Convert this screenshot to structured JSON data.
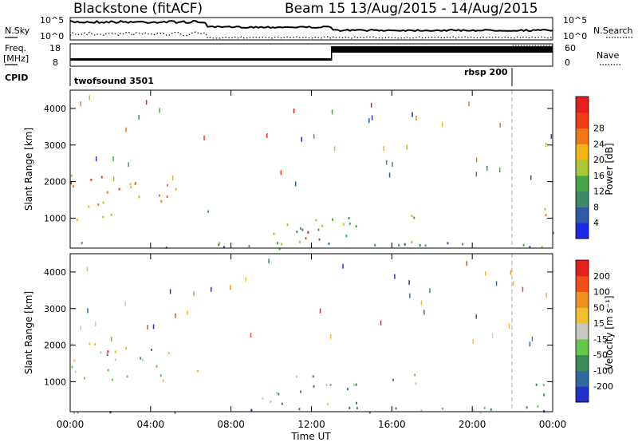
{
  "header": {
    "station": "Blackstone (fitACF)",
    "beam_dates": "Beam 15  13/Aug/2015 - 14/Aug/2015"
  },
  "summary": {
    "nsky_label": "N.Sky",
    "nsky_ticks": [
      "10^5",
      "10^0"
    ],
    "nsearch_label": "N.Search",
    "nsearch_ticks": [
      "10^5",
      "10^0"
    ],
    "freq_label_1": "Freq.",
    "freq_label_2": "[MHz]",
    "freq_ticks": [
      "18",
      "8"
    ],
    "nave_label": "Nave",
    "nave_ticks": [
      "60",
      "0"
    ],
    "cpid_label": "CPID",
    "cpid_segments": [
      {
        "name": "twofsound 3501",
        "start_h": 0,
        "end_h": 22
      },
      {
        "name": "rbsp 200",
        "start_h": 22,
        "end_h": 24
      }
    ],
    "freq_steps": [
      {
        "start_h": 0,
        "end_h": 13,
        "value": 8
      },
      {
        "start_h": 13,
        "end_h": 24,
        "value": 18
      }
    ],
    "nave_steps": [
      {
        "start_h": 0,
        "end_h": 13,
        "value": 0
      },
      {
        "start_h": 13,
        "end_h": 22,
        "value": 50
      },
      {
        "start_h": 22,
        "end_h": 24,
        "value": 60
      }
    ]
  },
  "chart_data": [
    {
      "type": "heatmap",
      "name": "power",
      "ylabel": "Slant Range [km]",
      "xlabel": "Time UT",
      "xlim": [
        0,
        24
      ],
      "ylim": [
        180,
        4500
      ],
      "xticks": [
        "00:00",
        "04:00",
        "08:00",
        "12:00",
        "16:00",
        "20:00",
        "00:00"
      ],
      "yticks": [
        1000,
        2000,
        3000,
        4000
      ],
      "colorbar_label": "Power [dB]",
      "colorbar_ticks": [
        4,
        8,
        12,
        16,
        20,
        24,
        28
      ],
      "colorbar_colors": [
        "#1e28e6",
        "#2e5aa6",
        "#3d8a6a",
        "#48a648",
        "#a8c834",
        "#f0b414",
        "#f07814",
        "#f03c14",
        "#e61e1e"
      ],
      "scatter_regions": [
        {
          "t0": 0.0,
          "t1": 2.5,
          "r0": 900,
          "r1": 2200,
          "level": 0.75
        },
        {
          "t0": 2.5,
          "t1": 5.3,
          "r0": 1200,
          "r1": 2100,
          "level": 0.55
        },
        {
          "t0": 6.0,
          "t1": 7.0,
          "r0": 1200,
          "r1": 1500,
          "level": 0.55
        },
        {
          "t0": 9.5,
          "t1": 14.5,
          "r0": 300,
          "r1": 1200,
          "level": 0.45
        },
        {
          "t0": 11.5,
          "t1": 13.0,
          "r0": 400,
          "r1": 800,
          "level": 0.9
        },
        {
          "t0": 16.2,
          "t1": 17.2,
          "r0": 700,
          "r1": 1200,
          "level": 0.6
        },
        {
          "t0": 23.0,
          "t1": 24.0,
          "r0": 600,
          "r1": 1300,
          "level": 0.6
        },
        {
          "t0": 0.0,
          "t1": 24.0,
          "r0": 180,
          "r1": 380,
          "level": 0.35
        }
      ]
    },
    {
      "type": "heatmap",
      "name": "velocity",
      "ylabel": "Slant Range [km]",
      "xlabel": "Time UT",
      "xlim": [
        0,
        24
      ],
      "ylim": [
        180,
        4500
      ],
      "xticks": [
        "00:00",
        "04:00",
        "08:00",
        "12:00",
        "16:00",
        "20:00",
        "00:00"
      ],
      "yticks": [
        1000,
        2000,
        3000,
        4000
      ],
      "colorbar_label": "Velocity [m s⁻¹]",
      "colorbar_ticks": [
        "200",
        "100",
        "50",
        "15",
        "-15",
        "-50",
        "-100",
        "-200"
      ],
      "colorbar_colors": [
        "#2030c8",
        "#2e6aa0",
        "#3a8a5a",
        "#66c84a",
        "#c8c8c0",
        "#f0c030",
        "#f09020",
        "#f05018",
        "#e61e1e"
      ],
      "scatter_regions": [
        {
          "t0": 0.0,
          "t1": 5.0,
          "r0": 1000,
          "r1": 2100,
          "level": 0.45
        },
        {
          "t0": 1.0,
          "t1": 2.2,
          "r0": 1800,
          "r1": 2000,
          "level": 0.95
        },
        {
          "t0": 6.0,
          "t1": 7.0,
          "r0": 1200,
          "r1": 1500,
          "level": 0.7
        },
        {
          "t0": 9.5,
          "t1": 14.5,
          "r0": 400,
          "r1": 1200,
          "level": 0.4
        },
        {
          "t0": 16.0,
          "t1": 17.5,
          "r0": 800,
          "r1": 1300,
          "level": 0.45
        },
        {
          "t0": 23.0,
          "t1": 24.0,
          "r0": 600,
          "r1": 1300,
          "level": 0.45
        },
        {
          "t0": 0.0,
          "t1": 24.0,
          "r0": 180,
          "r1": 380,
          "level": 0.3
        }
      ]
    }
  ]
}
